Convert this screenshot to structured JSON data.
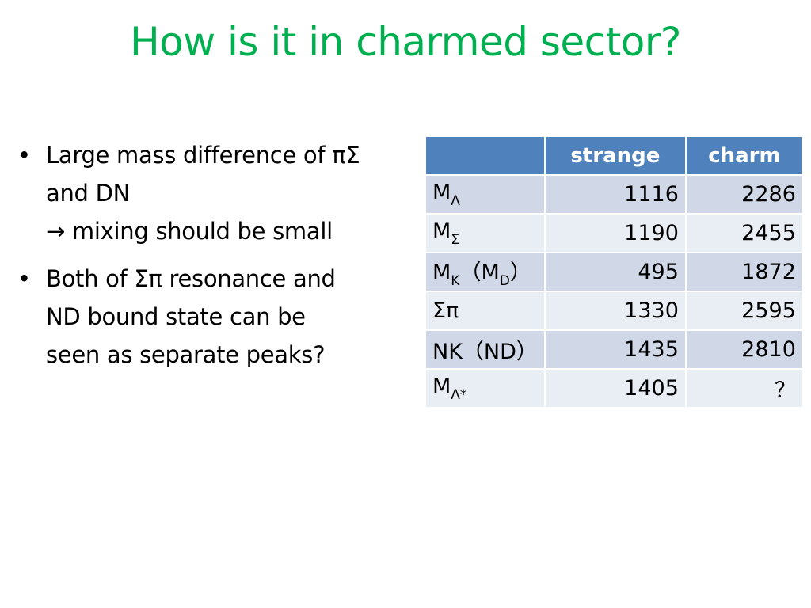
{
  "slide": {
    "title": "How is it in charmed sector?",
    "bullets": [
      {
        "lines": [
          "Large mass difference of πΣ",
          "and DN",
          "→ mixing should be small"
        ]
      },
      {
        "lines": [
          "Both of Σπ resonance and",
          "ND bound state can be",
          "seen as separate peaks?"
        ]
      }
    ]
  },
  "table": {
    "headers": [
      "",
      "strange",
      "charm"
    ],
    "rows": [
      {
        "label": {
          "main": "M",
          "sub": "Λ",
          "rest": "",
          "sub2": "",
          "rest2": ""
        },
        "strange": "1116",
        "charm": "2286"
      },
      {
        "label": {
          "main": "M",
          "sub": "Σ",
          "rest": "",
          "sub2": "",
          "rest2": ""
        },
        "strange": "1190",
        "charm": "2455"
      },
      {
        "label": {
          "main": "M",
          "sub": "K",
          "rest": "（M",
          "sub2": "D",
          "rest2": "）"
        },
        "strange": "495",
        "charm": "1872"
      },
      {
        "label": {
          "main": "Σπ",
          "sub": "",
          "rest": "",
          "sub2": "",
          "rest2": ""
        },
        "strange": "1330",
        "charm": "2595"
      },
      {
        "label": {
          "main": "NK（ND）",
          "sub": "",
          "rest": "",
          "sub2": "",
          "rest2": ""
        },
        "strange": "1435",
        "charm": "2810"
      },
      {
        "label": {
          "main": "M",
          "sub": "Λ*",
          "rest": "",
          "sub2": "",
          "rest2": ""
        },
        "strange": "1405",
        "charm": "？"
      }
    ]
  }
}
